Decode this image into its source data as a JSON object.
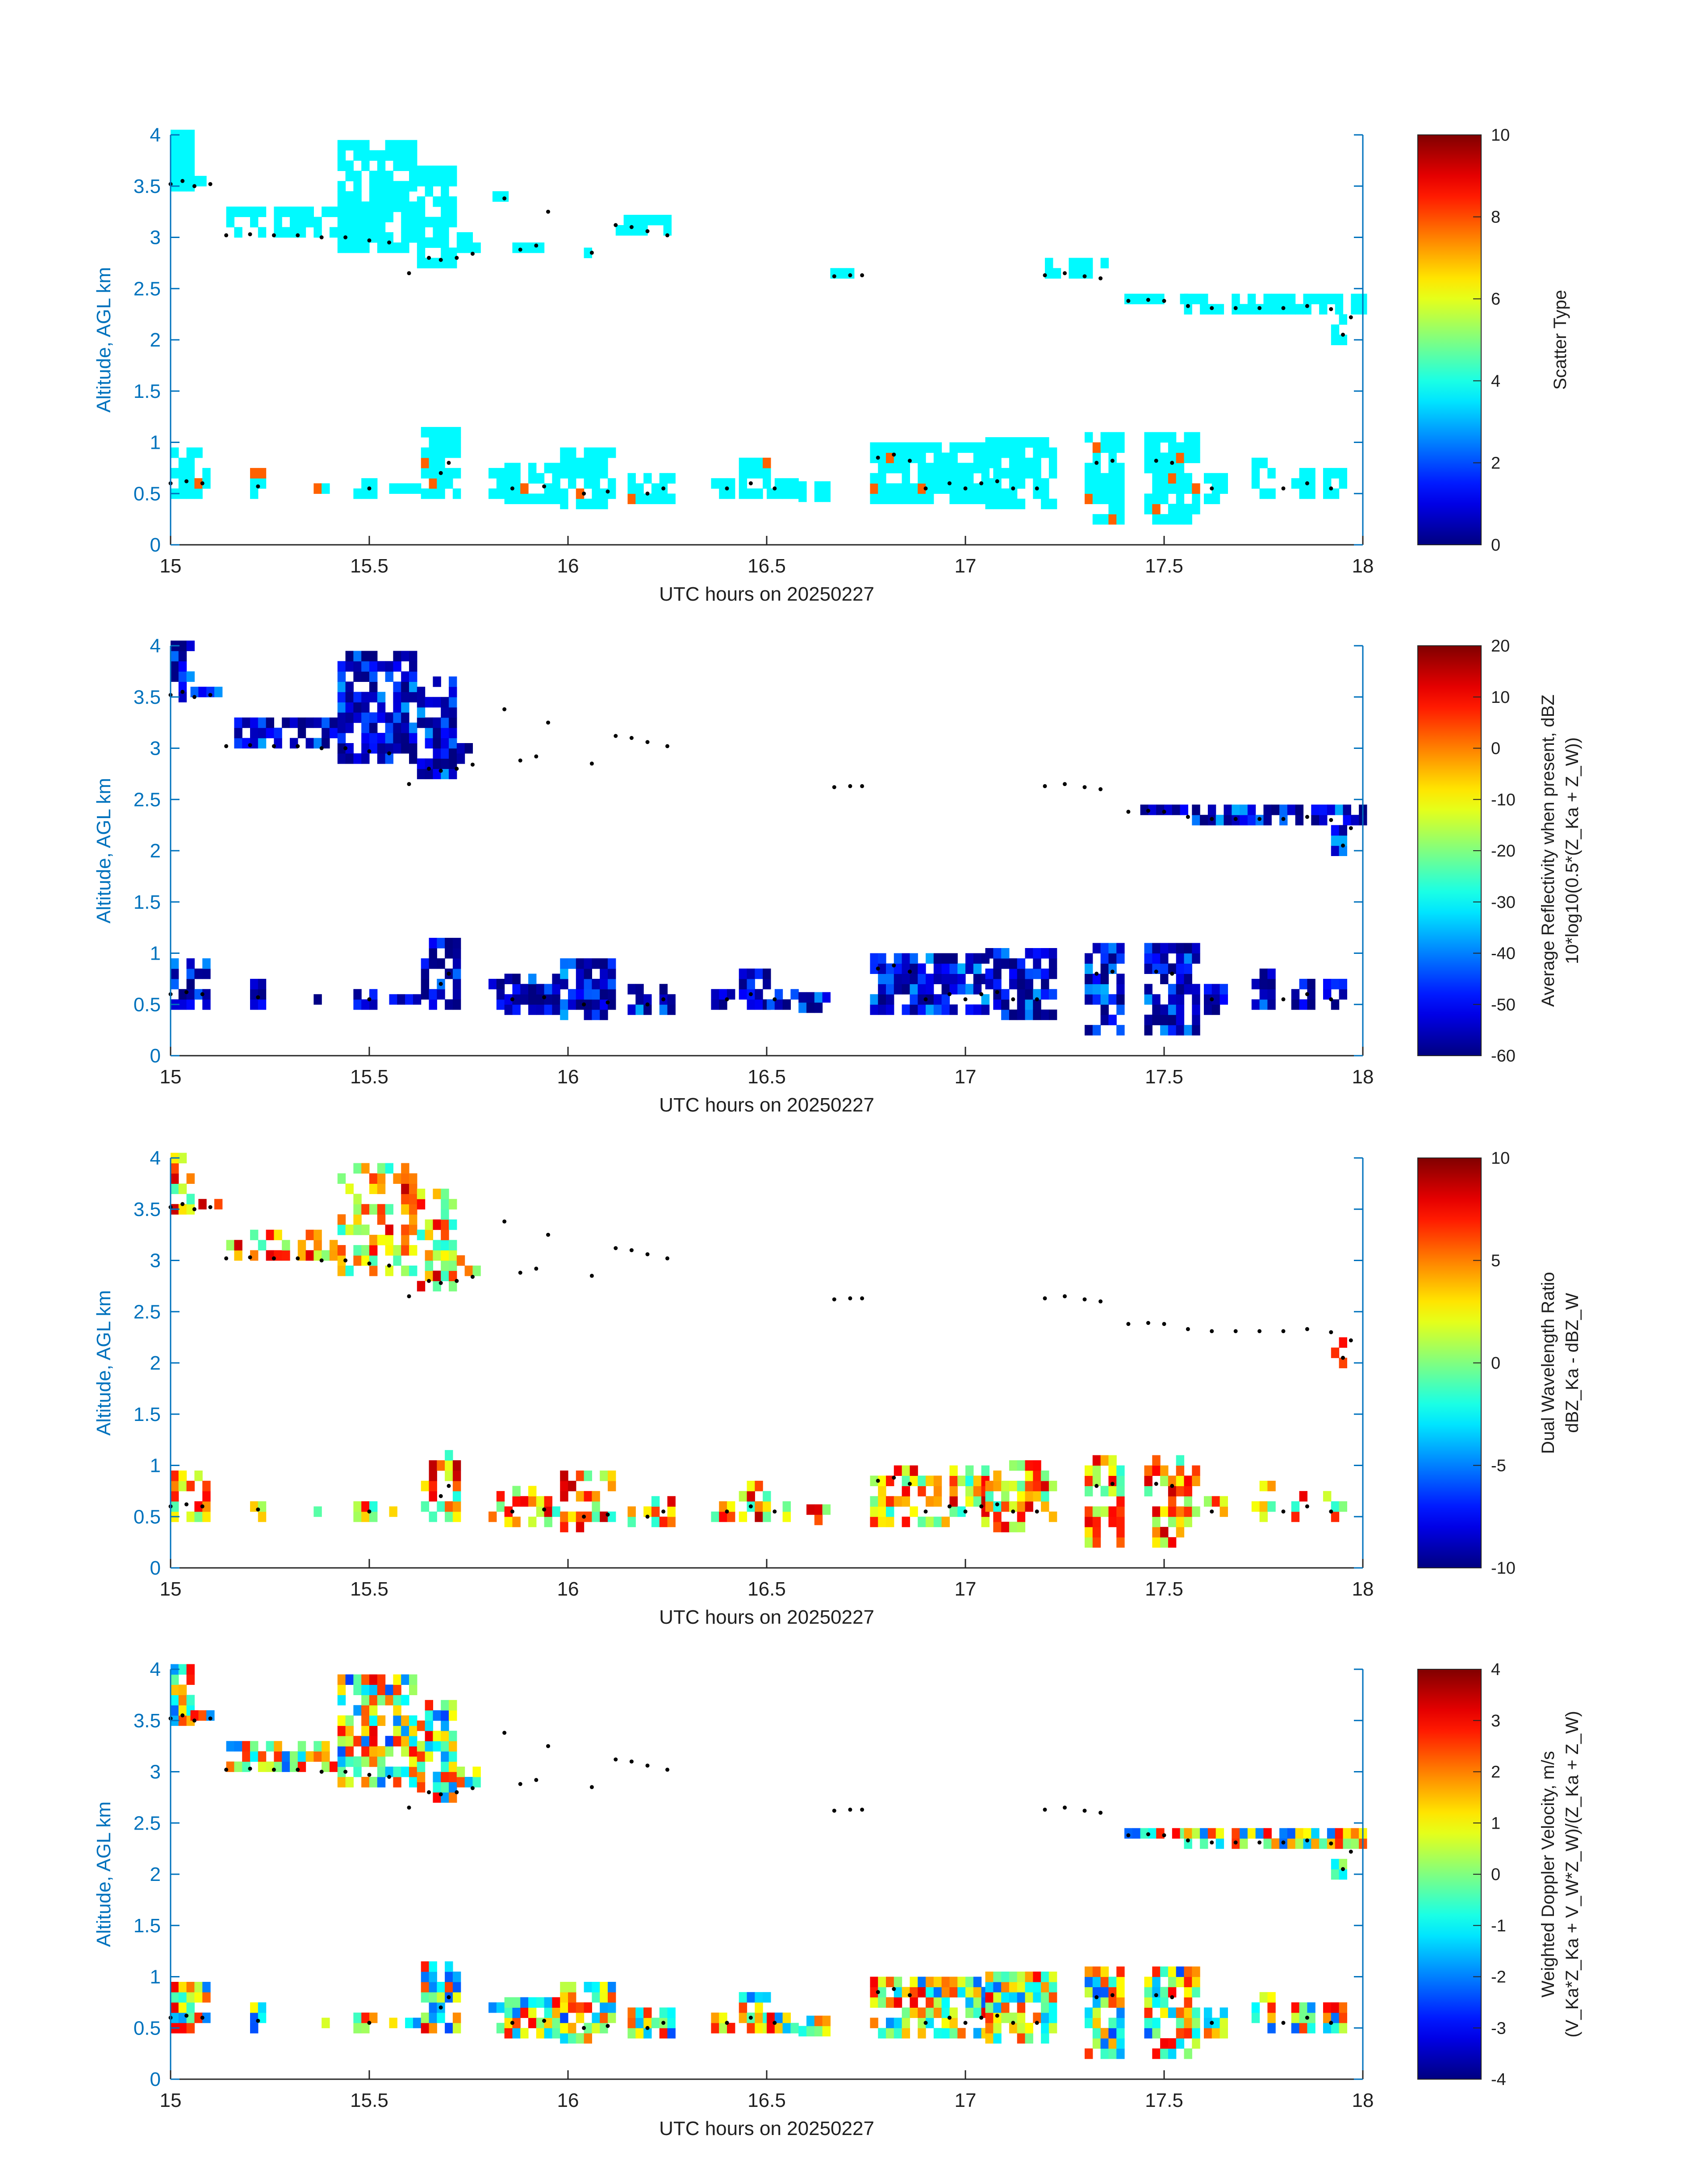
{
  "colors": {
    "axis": "#0072bd",
    "text": "#1f1f1f",
    "cloud_base_dots": "#000000",
    "colormap": "jet"
  },
  "chart_data": [
    {
      "type": "heatmap",
      "xlabel": "UTC hours on 20250227",
      "ylabel": "Altitude, AGL km",
      "xlim": [
        15,
        18
      ],
      "ylim": [
        0,
        4
      ],
      "xticks": [
        "15",
        "15.5",
        "16",
        "16.5",
        "17",
        "17.5",
        "18"
      ],
      "yticks": [
        "0",
        "0.5",
        "1",
        "1.5",
        "2",
        "2.5",
        "3",
        "3.5",
        "4"
      ],
      "colorbar": {
        "label_lines": [
          "Scatter Type"
        ],
        "range": [
          0,
          10
        ],
        "ticks": [
          "0",
          "2",
          "4",
          "6",
          "8",
          "10"
        ]
      },
      "fill": {
        "value": 3.7,
        "alt_value": 7.8,
        "alt_rule": "scatter_alt"
      }
    },
    {
      "type": "heatmap",
      "xlabel": "UTC hours on 20250227",
      "ylabel": "Altitude, AGL km",
      "xlim": [
        15,
        18
      ],
      "ylim": [
        0,
        4
      ],
      "xticks": [
        "15",
        "15.5",
        "16",
        "16.5",
        "17",
        "17.5",
        "18"
      ],
      "yticks": [
        "0",
        "0.5",
        "1",
        "1.5",
        "2",
        "2.5",
        "3",
        "3.5",
        "4"
      ],
      "colorbar": {
        "label_lines": [
          "Average Reflectivity when present, dBZ",
          "10*log10(0.5*(Z_Ka + Z_W))"
        ],
        "range": [
          -60,
          20
        ],
        "ticks": [
          "-60",
          "-50",
          "-40",
          "-30",
          "-20",
          "-10",
          "0",
          "10",
          "20"
        ]
      },
      "fill": {
        "min": -60,
        "max": -36
      }
    },
    {
      "type": "heatmap",
      "xlabel": "UTC hours on 20250227",
      "ylabel": "Altitude, AGL km",
      "xlim": [
        15,
        18
      ],
      "ylim": [
        0,
        4
      ],
      "xticks": [
        "15",
        "15.5",
        "16",
        "16.5",
        "17",
        "17.5",
        "18"
      ],
      "yticks": [
        "0",
        "0.5",
        "1",
        "1.5",
        "2",
        "2.5",
        "3",
        "3.5",
        "4"
      ],
      "colorbar": {
        "label_lines": [
          "Dual Wavelength Ratio",
          "dBZ_Ka - dBZ_W"
        ],
        "range": [
          -10,
          10
        ],
        "ticks": [
          "-10",
          "-5",
          "0",
          "5",
          "10"
        ]
      },
      "fill": {
        "min": -2,
        "max": 9
      }
    },
    {
      "type": "heatmap",
      "xlabel": "UTC hours on 20250227",
      "ylabel": "Altitude, AGL km",
      "xlim": [
        15,
        18
      ],
      "ylim": [
        0,
        4
      ],
      "xticks": [
        "15",
        "15.5",
        "16",
        "16.5",
        "17",
        "17.5",
        "18"
      ],
      "yticks": [
        "0",
        "0.5",
        "1",
        "1.5",
        "2",
        "2.5",
        "3",
        "3.5",
        "4"
      ],
      "colorbar": {
        "label_lines": [
          "Weighted Doppler Velocity, m/s",
          "(V_Ka*Z_Ka + V_W*Z_W)/(Z_Ka + Z_W)"
        ],
        "range": [
          -4,
          4
        ],
        "ticks": [
          "-4",
          "-3",
          "-2",
          "-1",
          "0",
          "1",
          "2",
          "3",
          "4"
        ]
      },
      "fill": {
        "min": -2.5,
        "max": 3.2
      }
    }
  ],
  "cloud_features": {
    "note_units": "x in UTC hours, altitudes in km AGL",
    "low_clouds": [
      [
        15.0,
        15.1,
        0.45,
        0.95
      ],
      [
        15.2,
        15.24,
        0.45,
        0.7
      ],
      [
        15.36,
        15.4,
        0.5,
        0.6
      ],
      [
        15.46,
        15.52,
        0.45,
        0.65
      ],
      [
        15.55,
        15.62,
        0.5,
        0.6
      ],
      [
        15.63,
        15.72,
        0.45,
        1.1
      ],
      [
        15.8,
        15.84,
        0.45,
        0.75
      ],
      [
        15.84,
        15.98,
        0.4,
        0.8
      ],
      [
        15.98,
        16.12,
        0.35,
        0.95
      ],
      [
        16.15,
        16.26,
        0.4,
        0.7
      ],
      [
        16.36,
        16.42,
        0.45,
        0.65
      ],
      [
        16.43,
        16.5,
        0.45,
        0.8
      ],
      [
        16.5,
        16.58,
        0.45,
        0.65
      ],
      [
        16.58,
        16.66,
        0.42,
        0.6
      ],
      [
        16.76,
        16.9,
        0.4,
        1.0
      ],
      [
        16.9,
        17.05,
        0.4,
        1.0
      ],
      [
        17.05,
        17.22,
        0.35,
        1.0
      ],
      [
        17.3,
        17.4,
        0.2,
        1.05
      ],
      [
        17.45,
        17.58,
        0.2,
        1.05
      ],
      [
        17.6,
        17.66,
        0.4,
        0.7
      ],
      [
        17.72,
        17.78,
        0.45,
        0.8
      ],
      [
        17.82,
        17.88,
        0.45,
        0.7
      ],
      [
        17.9,
        17.96,
        0.45,
        0.75
      ]
    ],
    "high_clouds": [
      [
        15.0,
        15.05,
        3.45,
        4.0
      ],
      [
        15.05,
        15.12,
        3.5,
        3.6
      ],
      [
        15.14,
        15.42,
        3.0,
        3.25
      ],
      [
        15.42,
        15.62,
        2.85,
        3.9
      ],
      [
        15.62,
        15.72,
        2.7,
        3.65
      ],
      [
        15.72,
        15.78,
        2.85,
        3.0
      ],
      [
        15.81,
        15.84,
        3.35,
        3.45
      ],
      [
        15.86,
        15.94,
        2.85,
        2.95
      ],
      [
        16.04,
        16.07,
        2.8,
        2.9
      ],
      [
        16.12,
        16.26,
        3.02,
        3.2
      ],
      [
        16.66,
        16.74,
        2.6,
        2.7
      ],
      [
        17.2,
        17.35,
        2.6,
        2.75
      ],
      [
        17.4,
        17.55,
        2.35,
        2.45
      ],
      [
        17.55,
        18.0,
        2.25,
        2.4
      ],
      [
        17.92,
        17.96,
        1.95,
        2.2
      ]
    ],
    "cloud_base_dots": [
      [
        15.0,
        3.52
      ],
      [
        15.03,
        3.55
      ],
      [
        15.06,
        3.5
      ],
      [
        15.1,
        3.52
      ],
      [
        15.14,
        3.02
      ],
      [
        15.2,
        3.03
      ],
      [
        15.26,
        3.02
      ],
      [
        15.32,
        3.02
      ],
      [
        15.38,
        3.0
      ],
      [
        15.44,
        3.0
      ],
      [
        15.5,
        2.97
      ],
      [
        15.55,
        2.95
      ],
      [
        15.6,
        2.65
      ],
      [
        15.65,
        2.8
      ],
      [
        15.68,
        2.78
      ],
      [
        15.72,
        2.8
      ],
      [
        15.76,
        2.84
      ],
      [
        15.84,
        3.38
      ],
      [
        15.88,
        2.88
      ],
      [
        15.92,
        2.92
      ],
      [
        15.95,
        3.25
      ],
      [
        16.06,
        2.85
      ],
      [
        16.12,
        3.12
      ],
      [
        16.16,
        3.1
      ],
      [
        16.2,
        3.06
      ],
      [
        16.25,
        3.02
      ],
      [
        16.67,
        2.62
      ],
      [
        16.71,
        2.63
      ],
      [
        16.74,
        2.63
      ],
      [
        17.2,
        2.63
      ],
      [
        17.25,
        2.65
      ],
      [
        17.3,
        2.62
      ],
      [
        17.34,
        2.6
      ],
      [
        17.41,
        2.38
      ],
      [
        17.46,
        2.39
      ],
      [
        17.5,
        2.38
      ],
      [
        17.56,
        2.33
      ],
      [
        17.62,
        2.31
      ],
      [
        17.68,
        2.31
      ],
      [
        17.74,
        2.31
      ],
      [
        17.8,
        2.31
      ],
      [
        17.86,
        2.33
      ],
      [
        17.92,
        2.3
      ],
      [
        17.95,
        2.05
      ],
      [
        17.97,
        2.22
      ]
    ],
    "low_base_dots": [
      [
        15.0,
        0.6
      ],
      [
        15.04,
        0.62
      ],
      [
        15.08,
        0.6
      ],
      [
        15.22,
        0.57
      ],
      [
        15.5,
        0.55
      ],
      [
        15.68,
        0.7
      ],
      [
        15.7,
        0.8
      ],
      [
        15.86,
        0.55
      ],
      [
        15.94,
        0.57
      ],
      [
        16.04,
        0.5
      ],
      [
        16.1,
        0.52
      ],
      [
        16.2,
        0.5
      ],
      [
        16.24,
        0.55
      ],
      [
        16.4,
        0.55
      ],
      [
        16.46,
        0.6
      ],
      [
        16.52,
        0.55
      ],
      [
        16.78,
        0.85
      ],
      [
        16.82,
        0.88
      ],
      [
        16.86,
        0.82
      ],
      [
        16.9,
        0.55
      ],
      [
        16.96,
        0.6
      ],
      [
        17.0,
        0.55
      ],
      [
        17.04,
        0.6
      ],
      [
        17.08,
        0.62
      ],
      [
        17.12,
        0.55
      ],
      [
        17.18,
        0.55
      ],
      [
        17.33,
        0.8
      ],
      [
        17.37,
        0.82
      ],
      [
        17.48,
        0.82
      ],
      [
        17.52,
        0.8
      ],
      [
        17.62,
        0.55
      ],
      [
        17.8,
        0.55
      ],
      [
        17.86,
        0.6
      ],
      [
        17.92,
        0.55
      ]
    ]
  }
}
